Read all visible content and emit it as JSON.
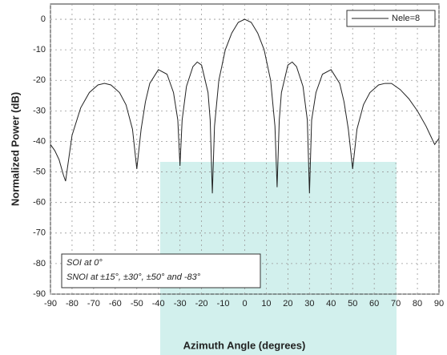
{
  "chart_data": {
    "type": "line",
    "x_label": "Azimuth Angle (degrees)",
    "y_label": "Normalized Power (dB)",
    "x": [
      -90,
      -88,
      -86,
      -84,
      -83,
      -82,
      -80,
      -76,
      -72,
      -68,
      -65,
      -62,
      -58,
      -55,
      -52,
      -50,
      -48,
      -46,
      -44,
      -40,
      -36,
      -33,
      -31,
      -30,
      -29,
      -27,
      -24,
      -22,
      -20,
      -17,
      -16,
      -15,
      -14,
      -12,
      -9,
      -6,
      -3,
      0,
      3,
      6,
      9,
      12,
      14,
      15,
      16,
      17,
      20,
      22,
      24,
      27,
      29,
      30,
      31,
      33,
      36,
      40,
      44,
      46,
      48,
      50,
      52,
      55,
      58,
      62,
      65,
      68,
      72,
      76,
      80,
      84,
      86,
      88,
      90
    ],
    "series": [
      {
        "name": "Nele=8",
        "color": "#222222",
        "values": [
          -41,
          -43,
          -46,
          -51,
          -53,
          -48,
          -38,
          -29,
          -24,
          -21.5,
          -21,
          -21.5,
          -24,
          -28,
          -36,
          -49,
          -36,
          -27,
          -21,
          -16.5,
          -18,
          -24,
          -33,
          -48,
          -33,
          -22,
          -15.5,
          -14,
          -15,
          -24,
          -33,
          -57,
          -35,
          -20,
          -10,
          -4.5,
          -1,
          0,
          -1,
          -4.5,
          -10,
          -20,
          -35,
          -55,
          -33,
          -24,
          -15,
          -14,
          -15.5,
          -22,
          -33,
          -57,
          -33,
          -24,
          -18,
          -16.5,
          -21,
          -27,
          -36,
          -49,
          -36,
          -28,
          -24,
          -21.5,
          -21,
          -21,
          -23,
          -26,
          -30,
          -35,
          -38,
          -41,
          -39
        ]
      }
    ],
    "xlim": [
      -90,
      90
    ],
    "xticks": [
      -90,
      -80,
      -70,
      -60,
      -50,
      -40,
      -30,
      -20,
      -10,
      0,
      10,
      20,
      30,
      40,
      50,
      60,
      70,
      80,
      90
    ],
    "ylim": [
      -90,
      5
    ],
    "yticks": [
      0,
      -10,
      -20,
      -30,
      -40,
      -50,
      -60,
      -70,
      -80,
      -90
    ],
    "grid": true,
    "legend": "upper right",
    "annotations": [
      "SOI at 0°",
      "SNOI at ±15°, ±30°, ±50° and -83°"
    ]
  }
}
